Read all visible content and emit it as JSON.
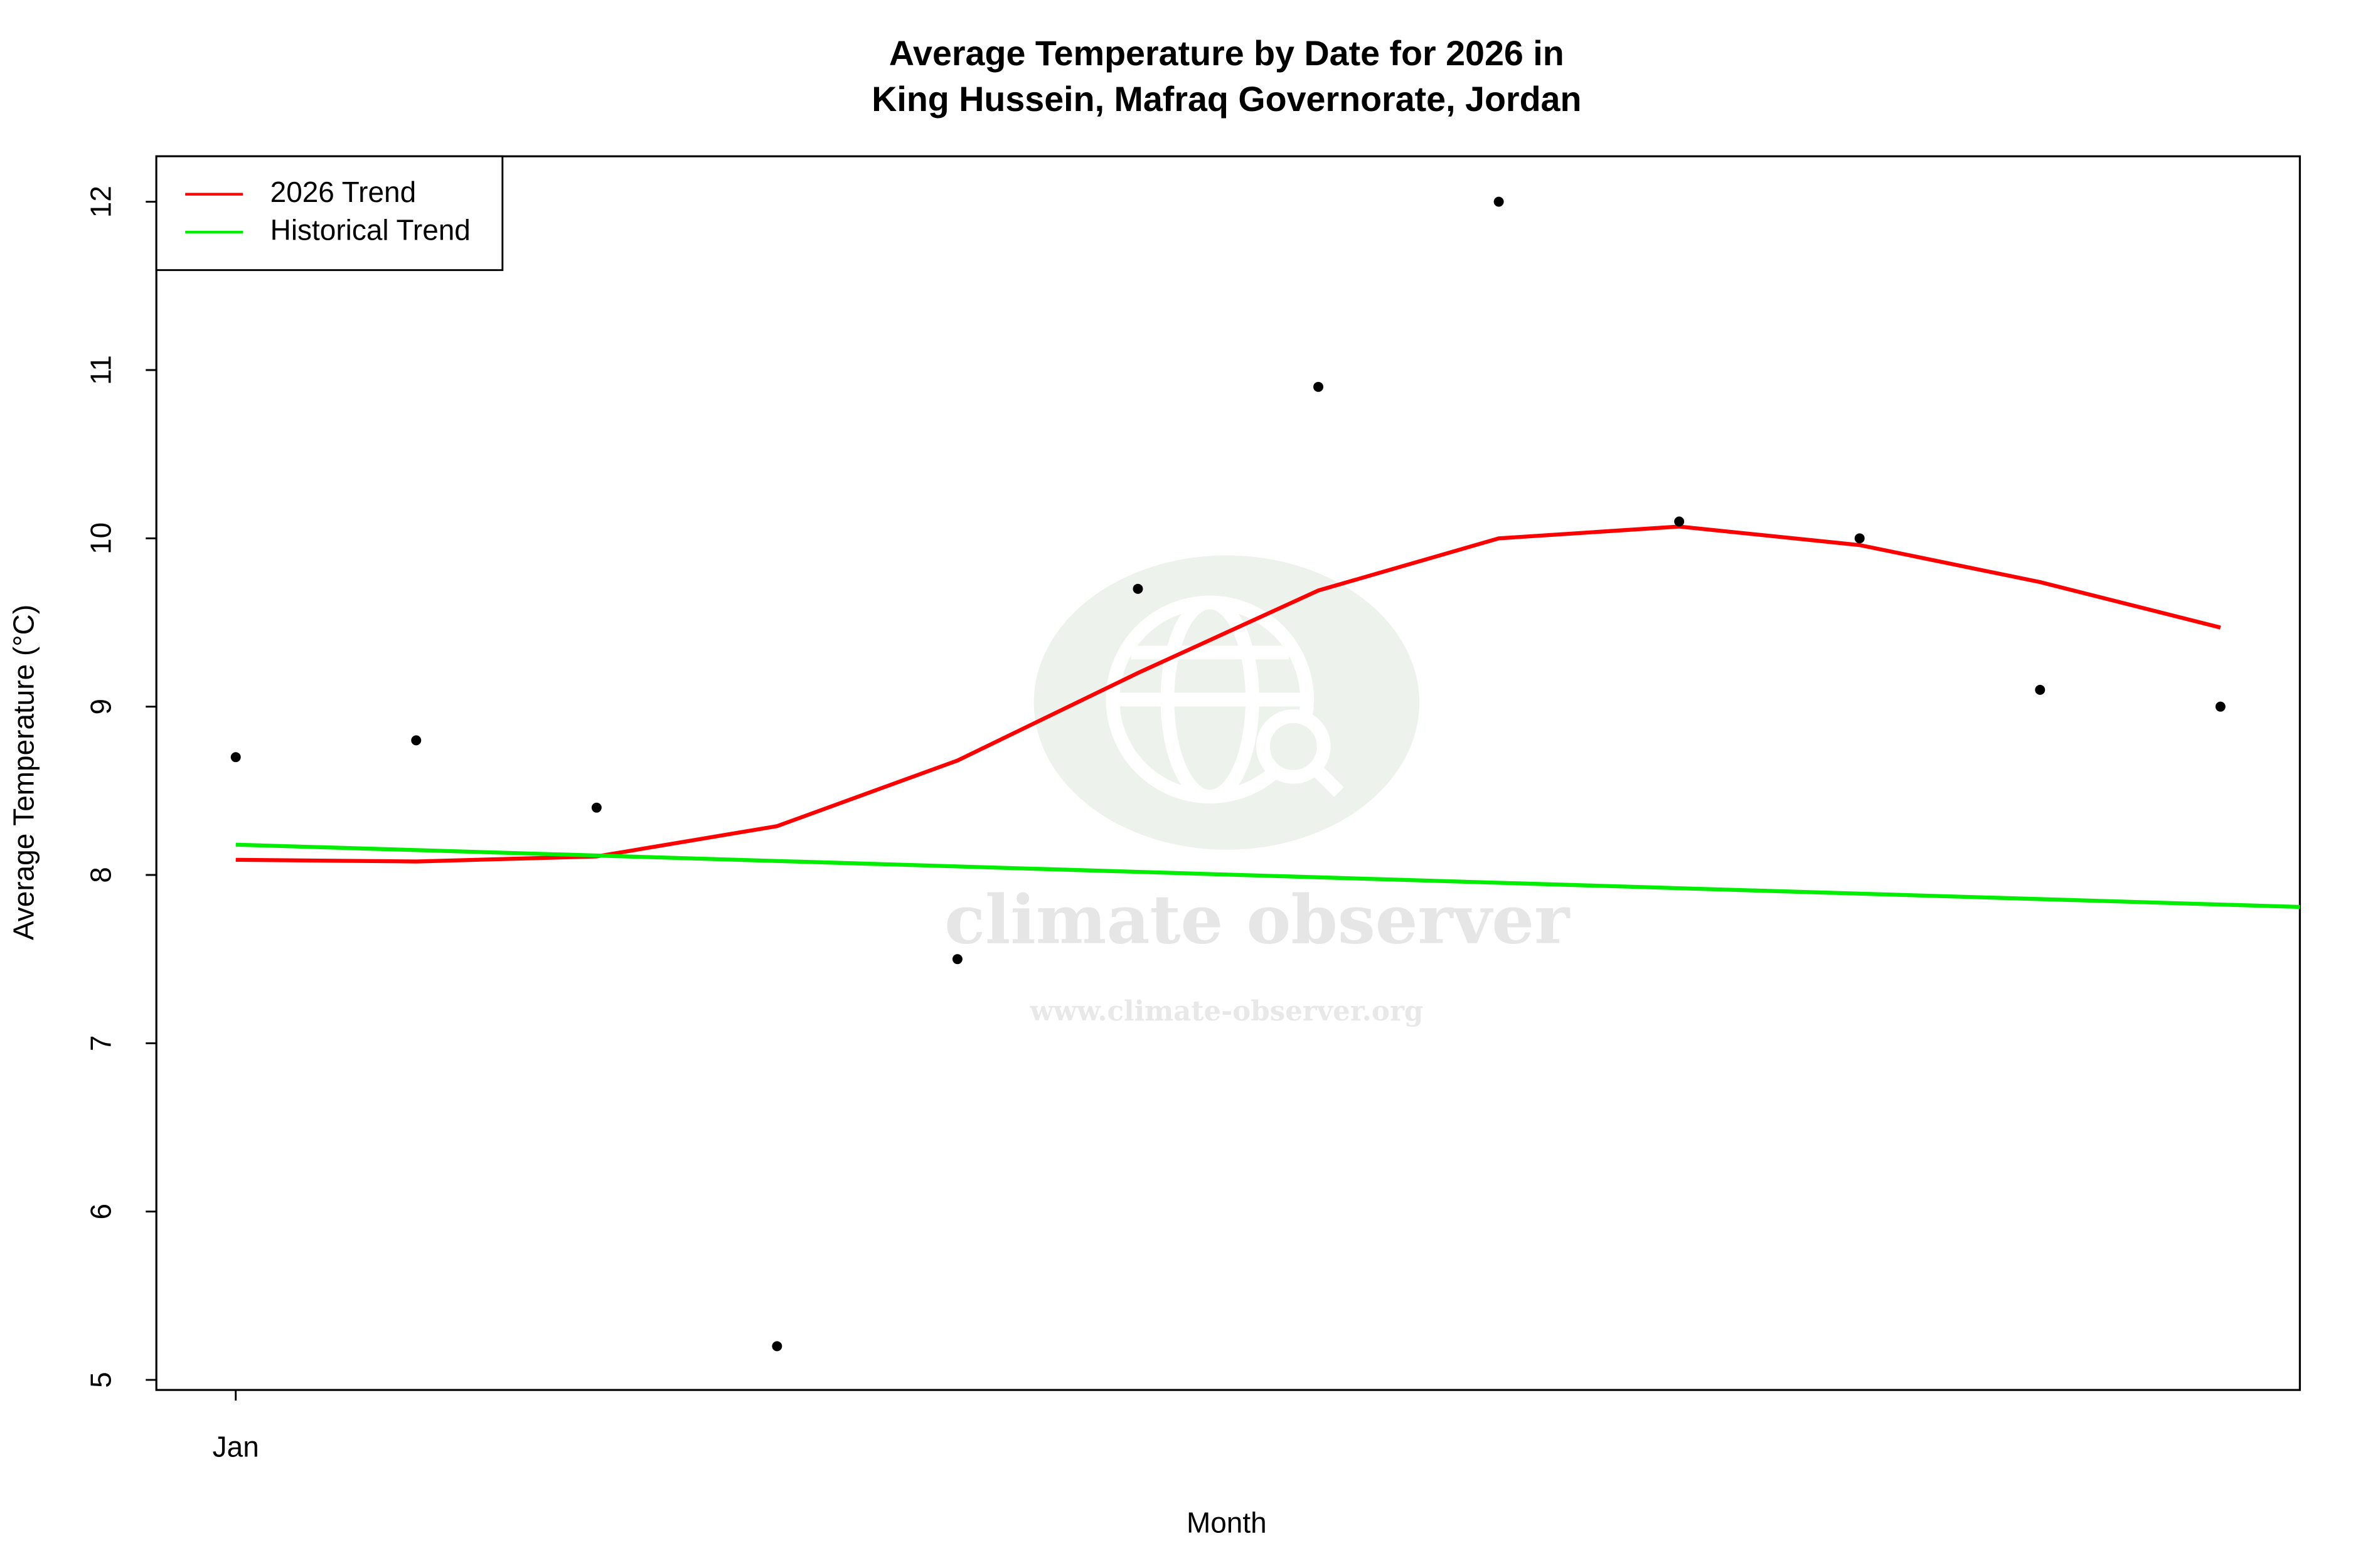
{
  "chart_data": {
    "type": "scatter",
    "title_lines": [
      "Average Temperature by Date for 2026 in",
      "King Hussein, Mafraq Governorate, Jordan"
    ],
    "x_label": "Month",
    "y_label": "Average Temperature (°C)",
    "x": [
      1,
      2,
      3,
      4,
      5,
      6,
      7,
      8,
      9,
      10,
      11,
      12
    ],
    "values": [
      8.7,
      8.8,
      8.4,
      5.2,
      7.5,
      9.7,
      10.9,
      12,
      10.1,
      10,
      9.1,
      9
    ],
    "color": "#000000",
    "series": [
      {
        "name": "2026 Trend",
        "color": "#ff0000",
        "values": [
          8.09,
          8.08,
          8.11,
          8.29,
          8.68,
          9.2,
          9.69,
          10.0,
          10.07,
          9.96,
          9.74,
          9.47
        ]
      },
      {
        "name": "Historical Trend",
        "color": "#00ee00",
        "x": [
          1,
          12.44
        ],
        "values": [
          8.18,
          7.81
        ]
      }
    ],
    "xlim": [
      0.56,
      12.44
    ],
    "xticks": [
      {
        "value": 1,
        "label": "Jan"
      }
    ],
    "ylim": [
      4.94,
      12.27
    ],
    "yticks": [
      5,
      6,
      7,
      8,
      9,
      10,
      11,
      12
    ],
    "legend": "top-left",
    "watermark": {
      "name": "climate observer",
      "url": "www.climate-observer.org"
    }
  }
}
